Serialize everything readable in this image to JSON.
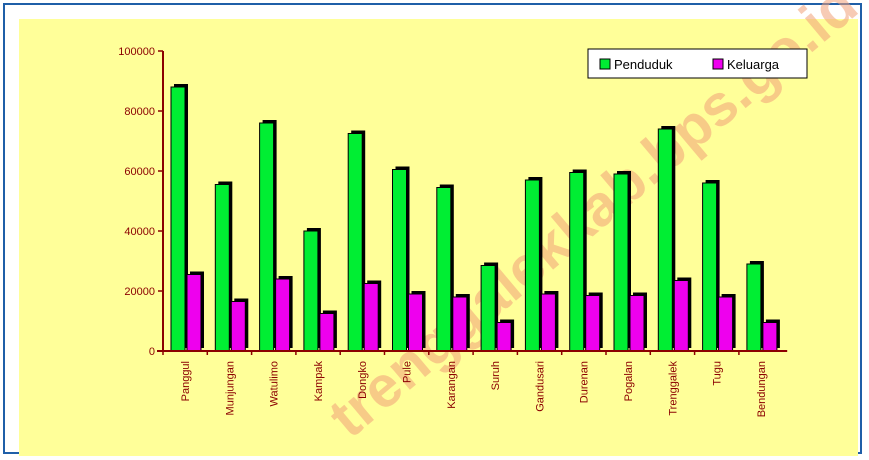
{
  "colors": {
    "frame": "#1f5fa8",
    "background": "#ffff99",
    "axis": "#8b0000",
    "penduduk": "#00ee33",
    "keluarga": "#ee00ee",
    "watermark": "#f2a27a"
  },
  "watermark": "trenggalekkab.bps.go.id",
  "chart_data": {
    "type": "bar",
    "title": "",
    "xlabel": "",
    "ylabel": "",
    "ylim": [
      0,
      100000
    ],
    "yticks": [
      "0",
      "20000",
      "40000",
      "60000",
      "80000",
      "100000"
    ],
    "legend_position": "top-right",
    "grid": false,
    "categories": [
      "Panggul",
      "Munjungan",
      "Watulimo",
      "Kampak",
      "Dongko",
      "Pule",
      "Karangan",
      "Suruh",
      "Gandusari",
      "Durenan",
      "Pogalan",
      "Trenggalek",
      "Tugu",
      "Bendungan"
    ],
    "series": [
      {
        "name": "Penduduk",
        "values": [
          88000,
          55500,
          76000,
          40000,
          72500,
          60500,
          54500,
          28500,
          57000,
          59500,
          59000,
          74000,
          56000,
          29000
        ]
      },
      {
        "name": "Keluarga",
        "values": [
          25500,
          16500,
          24000,
          12500,
          22500,
          19000,
          18000,
          9500,
          19000,
          18500,
          18500,
          23500,
          18000,
          9500
        ]
      }
    ]
  }
}
